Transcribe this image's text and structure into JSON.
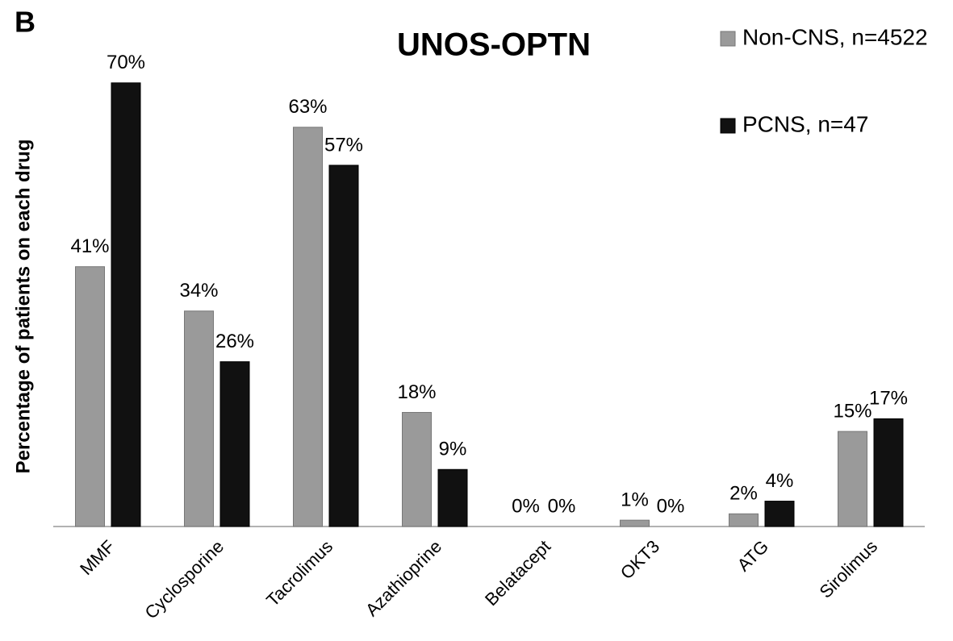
{
  "chart_data": {
    "type": "bar",
    "panel_label": "B",
    "title": "UNOS-OPTN",
    "y_label": "Percentage of patients on each drug",
    "categories": [
      "MMF",
      "Cyclosporine",
      "Tacrolimus",
      "Azathioprine",
      "Belatacept",
      "OKT3",
      "ATG",
      "Sirolimus"
    ],
    "series": [
      {
        "name": "Non-CNS, n=4522",
        "color": "#9a9a9a",
        "values": [
          41,
          34,
          63,
          18,
          0,
          1,
          2,
          15
        ],
        "value_labels": [
          "41%",
          "34%",
          "63%",
          "18%",
          "0%",
          "1%",
          "2%",
          "15%"
        ]
      },
      {
        "name": "PCNS, n=47",
        "color": "#111111",
        "values": [
          70,
          26,
          57,
          9,
          0,
          0,
          4,
          17
        ],
        "value_labels": [
          "70%",
          "26%",
          "57%",
          "9%",
          "0%",
          "0%",
          "4%",
          "17%"
        ]
      }
    ],
    "legend": "top-right"
  }
}
